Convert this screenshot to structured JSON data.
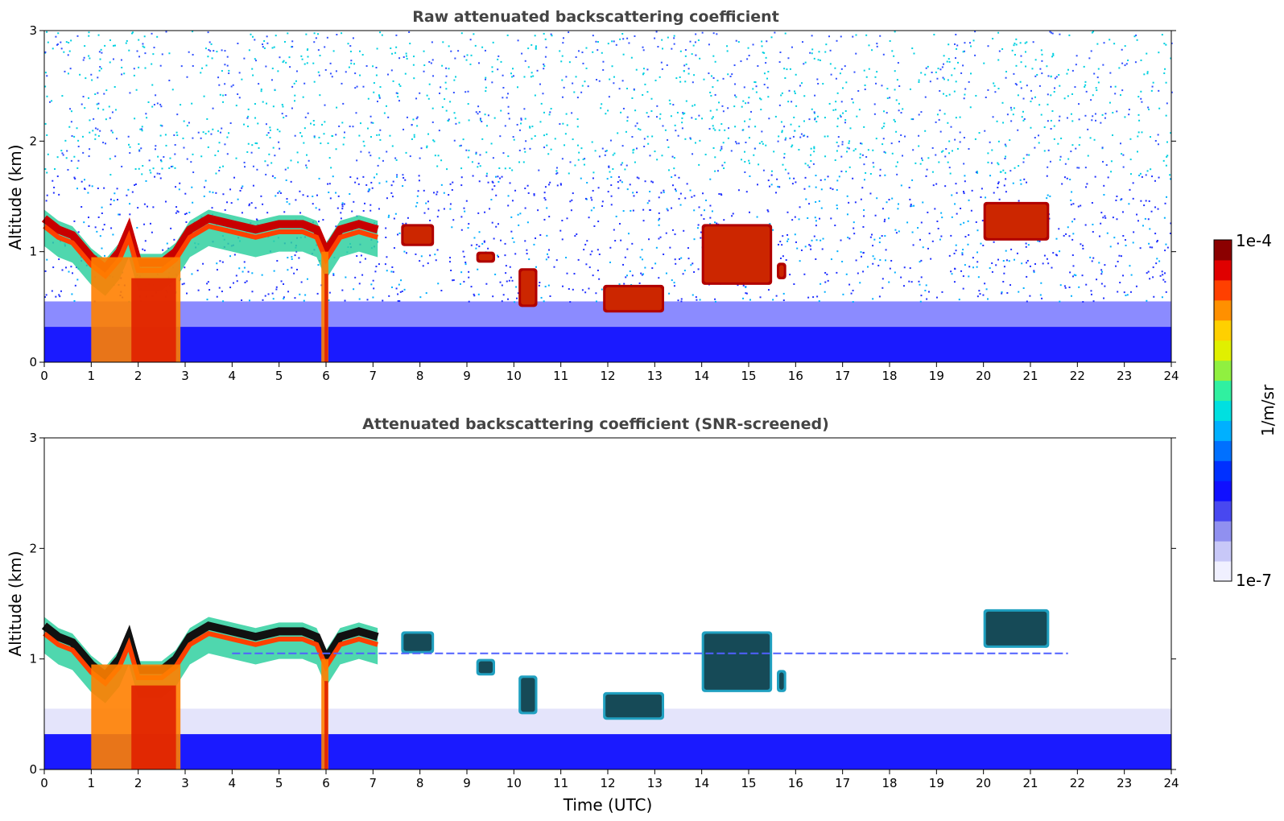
{
  "chart_data": [
    {
      "type": "heatmap",
      "title": "Raw attenuated backscattering coefficient",
      "xlabel": "",
      "ylabel": "Altitude (km)",
      "xlim": [
        0,
        24
      ],
      "ylim": [
        0,
        3
      ],
      "xticks": [
        "0",
        "1",
        "2",
        "3",
        "4",
        "5",
        "6",
        "7",
        "8",
        "9",
        "10",
        "11",
        "12",
        "13",
        "14",
        "15",
        "16",
        "17",
        "18",
        "19",
        "20",
        "21",
        "22",
        "23",
        "24"
      ],
      "yticks": [
        "0",
        "1",
        "2",
        "3"
      ],
      "grid": false,
      "noise": "raw",
      "features": [
        {
          "kind": "cloud_base_line",
          "t": [
            0,
            0.3,
            0.6,
            1,
            1.3,
            1.6,
            1.8,
            2.0,
            2.5,
            2.8,
            3.1,
            3.5,
            4.0,
            4.5,
            5.0,
            5.5,
            5.8,
            6.0,
            6.3,
            6.7,
            7.1
          ],
          "alt": [
            1.3,
            1.2,
            1.15,
            0.95,
            0.85,
            1.0,
            1.2,
            0.9,
            0.9,
            1.0,
            1.2,
            1.3,
            1.25,
            1.2,
            1.25,
            1.25,
            1.2,
            1.0,
            1.2,
            1.25,
            1.2
          ]
        },
        {
          "kind": "cloud_patch",
          "t0": 7.6,
          "t1": 8.3,
          "alt0": 1.05,
          "alt1": 1.25
        },
        {
          "kind": "cloud_patch",
          "t0": 9.2,
          "t1": 9.6,
          "alt0": 0.9,
          "alt1": 1.0
        },
        {
          "kind": "cloud_patch",
          "t0": 10.1,
          "t1": 10.5,
          "alt0": 0.5,
          "alt1": 0.85
        },
        {
          "kind": "cloud_patch",
          "t0": 11.9,
          "t1": 13.2,
          "alt0": 0.45,
          "alt1": 0.7
        },
        {
          "kind": "cloud_patch",
          "t0": 14.0,
          "t1": 15.5,
          "alt0": 0.7,
          "alt1": 1.25
        },
        {
          "kind": "cloud_patch",
          "t0": 15.6,
          "t1": 15.8,
          "alt0": 0.75,
          "alt1": 0.9
        },
        {
          "kind": "cloud_patch",
          "t0": 20.0,
          "t1": 21.4,
          "alt0": 1.1,
          "alt1": 1.45
        },
        {
          "kind": "precip_column",
          "t0": 1.0,
          "t1": 2.9,
          "alt0": 0,
          "alt1": 0.95
        },
        {
          "kind": "precip_column",
          "t0": 5.9,
          "t1": 6.05,
          "alt0": 0,
          "alt1": 1.0
        }
      ]
    },
    {
      "type": "heatmap",
      "title": "Attenuated backscattering coefficient (SNR-screened)",
      "xlabel": "Time (UTC)",
      "ylabel": "Altitude (km)",
      "xlim": [
        0,
        24
      ],
      "ylim": [
        0,
        3
      ],
      "xticks": [
        "0",
        "1",
        "2",
        "3",
        "4",
        "5",
        "6",
        "7",
        "8",
        "9",
        "10",
        "11",
        "12",
        "13",
        "14",
        "15",
        "16",
        "17",
        "18",
        "19",
        "20",
        "21",
        "22",
        "23",
        "24"
      ],
      "yticks": [
        "0",
        "1",
        "2",
        "3"
      ],
      "grid": false,
      "noise": "screened",
      "features": [
        {
          "kind": "cloud_base_line",
          "t": [
            0,
            0.3,
            0.6,
            1,
            1.3,
            1.6,
            1.8,
            2.0,
            2.5,
            2.8,
            3.1,
            3.5,
            4.0,
            4.5,
            5.0,
            5.5,
            5.8,
            6.0,
            6.3,
            6.7,
            7.1
          ],
          "alt": [
            1.3,
            1.2,
            1.15,
            0.95,
            0.85,
            1.0,
            1.2,
            0.9,
            0.9,
            1.0,
            1.2,
            1.3,
            1.25,
            1.2,
            1.25,
            1.25,
            1.2,
            1.0,
            1.2,
            1.25,
            1.2
          ]
        },
        {
          "kind": "cloud_patch",
          "t0": 7.6,
          "t1": 8.3,
          "alt0": 1.05,
          "alt1": 1.25
        },
        {
          "kind": "cloud_patch",
          "t0": 9.2,
          "t1": 9.6,
          "alt0": 0.85,
          "alt1": 1.0
        },
        {
          "kind": "cloud_patch",
          "t0": 10.1,
          "t1": 10.5,
          "alt0": 0.5,
          "alt1": 0.85
        },
        {
          "kind": "cloud_patch",
          "t0": 11.9,
          "t1": 13.2,
          "alt0": 0.45,
          "alt1": 0.7
        },
        {
          "kind": "cloud_patch",
          "t0": 14.0,
          "t1": 15.5,
          "alt0": 0.7,
          "alt1": 1.25
        },
        {
          "kind": "cloud_patch",
          "t0": 15.6,
          "t1": 15.8,
          "alt0": 0.7,
          "alt1": 0.9
        },
        {
          "kind": "cloud_patch",
          "t0": 20.0,
          "t1": 21.4,
          "alt0": 1.1,
          "alt1": 1.45
        },
        {
          "kind": "precip_column",
          "t0": 1.0,
          "t1": 2.9,
          "alt0": 0,
          "alt1": 0.95
        },
        {
          "kind": "precip_column",
          "t0": 5.9,
          "t1": 6.05,
          "alt0": 0,
          "alt1": 1.0
        },
        {
          "kind": "thin_layer",
          "t0": 4.0,
          "t1": 21.8,
          "alt": 1.05
        }
      ]
    }
  ],
  "colorbar": {
    "label": "1/m/sr",
    "max_label": "1e-4",
    "min_label": "1e-7",
    "scale": "log",
    "range": [
      1e-07,
      0.0001
    ],
    "colors": [
      "#f0f0ff",
      "#c8c8f8",
      "#9090f0",
      "#4848f0",
      "#1010ff",
      "#0030ff",
      "#0070ff",
      "#00b0ff",
      "#00e0e0",
      "#30f0a0",
      "#90f040",
      "#e0f000",
      "#ffd000",
      "#ff9000",
      "#ff4000",
      "#e00000",
      "#8b0000"
    ]
  }
}
